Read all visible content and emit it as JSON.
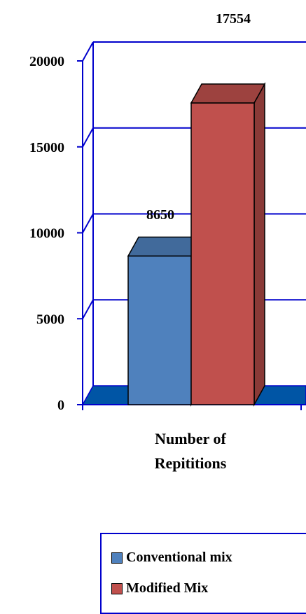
{
  "chart_data": {
    "type": "bar",
    "categories": [
      "Number of Repititions"
    ],
    "series": [
      {
        "name": "Conventional mix",
        "values": [
          8650
        ],
        "color": "#4f81bd"
      },
      {
        "name": "Modified Mix",
        "values": [
          17554
        ],
        "color": "#c0504d"
      }
    ],
    "data_labels": [
      "8650",
      "17554"
    ],
    "xlabel": "",
    "ylabel": "",
    "ylim": [
      0,
      20000
    ],
    "y_ticks": [
      "0",
      "5000",
      "10000",
      "15000",
      "20000"
    ],
    "y_tick_values": [
      0,
      5000,
      10000,
      15000,
      20000
    ],
    "category_label_lines": [
      "Number of",
      "Repititions"
    ],
    "grid": true,
    "grid_color": "#0000cc",
    "floor_color": "#0055a5",
    "style": "3d-column",
    "legend_position": "bottom"
  }
}
